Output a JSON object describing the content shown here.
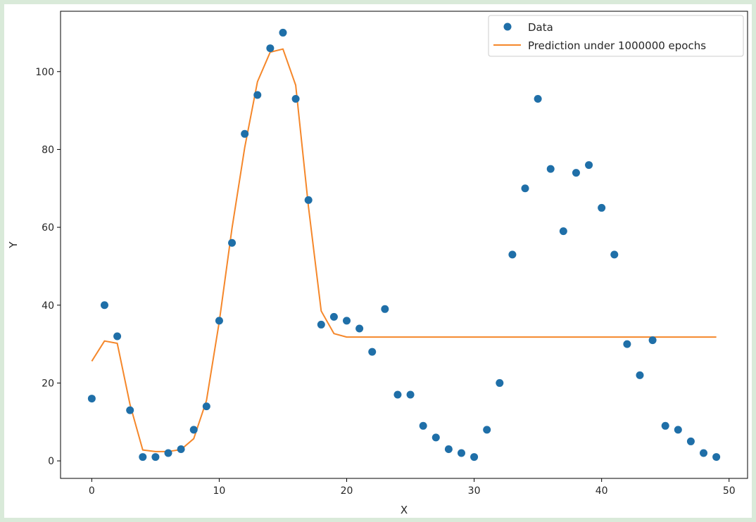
{
  "chart_data": {
    "type": "scatter",
    "title": "",
    "xlabel": "X",
    "ylabel": "Y",
    "xlim": [
      -2.45,
      51.45
    ],
    "ylim": [
      -4.5,
      115.5
    ],
    "xticks": [
      "0",
      "10",
      "20",
      "30",
      "40",
      "50"
    ],
    "yticks": [
      "0",
      "20",
      "40",
      "60",
      "80",
      "100"
    ],
    "grid": false,
    "legend_position": "top-right",
    "series": [
      {
        "name": "Data",
        "kind": "scatter",
        "color": "#1f6fa8",
        "x": [
          0,
          1,
          2,
          3,
          4,
          5,
          6,
          7,
          8,
          9,
          10,
          11,
          12,
          13,
          14,
          15,
          16,
          17,
          18,
          19,
          20,
          21,
          22,
          23,
          24,
          25,
          26,
          27,
          28,
          29,
          30,
          31,
          32,
          33,
          34,
          35,
          36,
          37,
          38,
          39,
          40,
          41,
          42,
          43,
          44,
          45,
          46,
          47,
          48,
          49
        ],
        "y": [
          16,
          40,
          32,
          13,
          1,
          1,
          2,
          3,
          8,
          14,
          36,
          56,
          84,
          94,
          106,
          110,
          93,
          67,
          35,
          37,
          36,
          34,
          28,
          39,
          17,
          17,
          9,
          6,
          3,
          2,
          1,
          8,
          20,
          53,
          70,
          93,
          75,
          59,
          74,
          76,
          65,
          53,
          30,
          22,
          31,
          9,
          8,
          5,
          2,
          1
        ]
      },
      {
        "name": "Prediction under 1000000 epochs",
        "kind": "line",
        "color": "#f5872a",
        "x": [
          0,
          1,
          2,
          3,
          4,
          5,
          6,
          7,
          8,
          9,
          10,
          11,
          12,
          13,
          14,
          15,
          16,
          17,
          18,
          19,
          20,
          21,
          22,
          23,
          24,
          25,
          26,
          27,
          28,
          29,
          30,
          31,
          32,
          33,
          34,
          35,
          36,
          37,
          38,
          39,
          40,
          41,
          42,
          43,
          44,
          45,
          46,
          47,
          48,
          49
        ],
        "y": [
          25.6,
          30.8,
          30.2,
          14.5,
          2.8,
          2.4,
          2.4,
          2.9,
          5.7,
          15.5,
          35.7,
          59.7,
          80.5,
          97.4,
          105.0,
          105.8,
          96.5,
          65.3,
          38.5,
          32.7,
          31.8,
          31.8,
          31.8,
          31.8,
          31.8,
          31.8,
          31.8,
          31.8,
          31.8,
          31.8,
          31.8,
          31.8,
          31.8,
          31.8,
          31.8,
          31.8,
          31.8,
          31.8,
          31.8,
          31.8,
          31.8,
          31.8,
          31.8,
          31.8,
          31.8,
          31.8,
          31.8,
          31.8,
          31.8,
          31.8
        ]
      }
    ]
  }
}
